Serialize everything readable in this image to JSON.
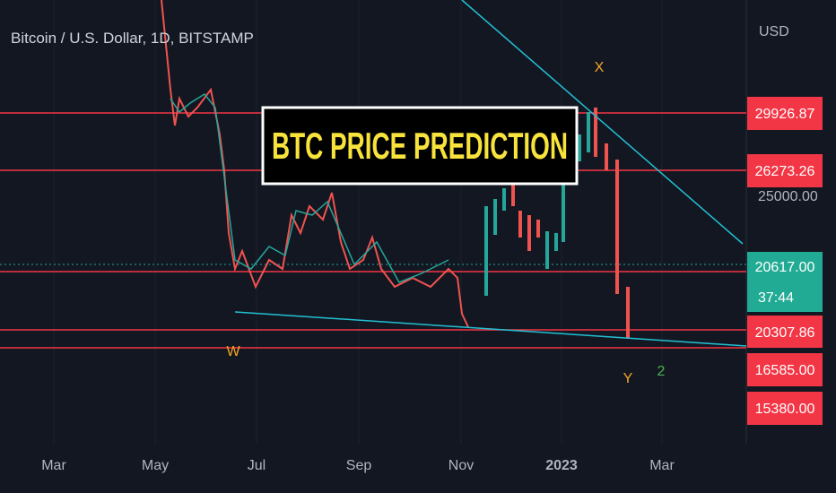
{
  "header": {
    "symbol": "Bitcoin / U.S. Dollar, 1D, BITSTAMP",
    "currency": "USD"
  },
  "banner": "BTC PRICE PREDICTION",
  "price_scale": {
    "tick": "25000.00",
    "labels": [
      "29926.87",
      "26273.26",
      "20617.00",
      "20307.86",
      "16585.00",
      "15380.00"
    ],
    "countdown": "37:44"
  },
  "time_axis": [
    "Mar",
    "May",
    "Jul",
    "Sep",
    "Nov",
    "2023",
    "Mar"
  ],
  "annotations": [
    "X",
    "W",
    "Y",
    "2"
  ]
}
